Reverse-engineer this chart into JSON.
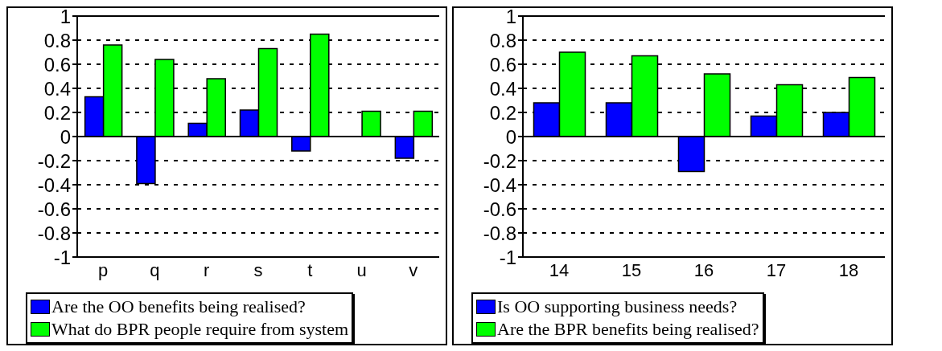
{
  "chart_data": [
    {
      "type": "bar",
      "categories": [
        "p",
        "q",
        "r",
        "s",
        "t",
        "u",
        "v"
      ],
      "series": [
        {
          "name": "Are the OO benefits being realised?",
          "color": "#0000ff",
          "values": [
            0.33,
            -0.39,
            0.11,
            0.22,
            -0.12,
            0,
            -0.18
          ]
        },
        {
          "name": "What do BPR people require from system",
          "color": "#00ff00",
          "values": [
            0.76,
            0.64,
            0.48,
            0.73,
            0.85,
            0.21,
            0.21
          ]
        }
      ],
      "ylim": [
        -1,
        1
      ],
      "yticks": [
        -1,
        -0.8,
        -0.6,
        -0.4,
        -0.2,
        0,
        0.2,
        0.4,
        0.6,
        0.8,
        1
      ],
      "grid": "y",
      "legend": "bottom"
    },
    {
      "type": "bar",
      "categories": [
        "14",
        "15",
        "16",
        "17",
        "18"
      ],
      "series": [
        {
          "name": "Is OO supporting business needs?",
          "color": "#0000ff",
          "values": [
            0.28,
            0.28,
            -0.29,
            0.17,
            0.2
          ]
        },
        {
          "name": "Are the BPR benefits being realised?",
          "color": "#00ff00",
          "values": [
            0.7,
            0.67,
            0.52,
            0.43,
            0.49
          ]
        }
      ],
      "ylim": [
        -1,
        1
      ],
      "yticks": [
        -1,
        -0.8,
        -0.6,
        -0.4,
        -0.2,
        0,
        0.2,
        0.4,
        0.6,
        0.8,
        1
      ],
      "grid": "y",
      "legend": "bottom"
    }
  ]
}
